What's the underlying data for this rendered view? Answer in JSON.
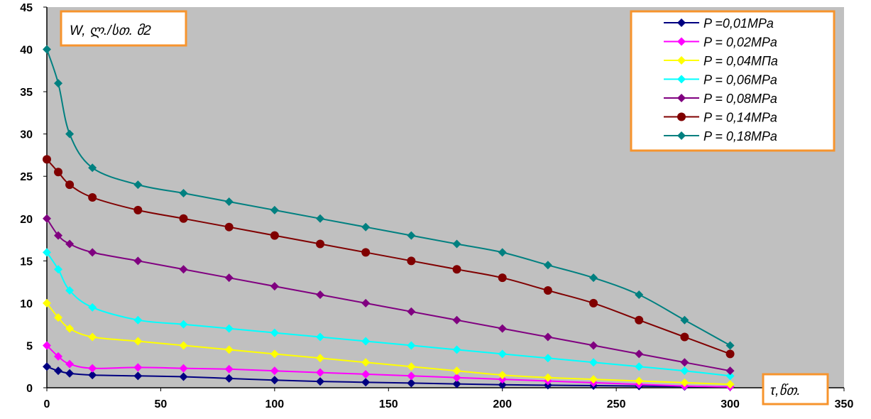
{
  "chart_data": {
    "type": "line",
    "title": "",
    "ylabel": "W, ლ./სთ. მ2",
    "xlabel": "τ,წთ.",
    "xlim": [
      0,
      350
    ],
    "ylim": [
      0,
      45
    ],
    "xticks": [
      0,
      50,
      100,
      150,
      200,
      250,
      300,
      350
    ],
    "yticks": [
      0,
      5,
      10,
      15,
      20,
      25,
      30,
      35,
      40,
      45
    ],
    "grid": false,
    "legend_position": "top-right",
    "plot_background": "#C0C0C0",
    "frame_color": "#F7942D",
    "x": [
      0,
      5,
      10,
      20,
      40,
      60,
      80,
      100,
      120,
      140,
      160,
      180,
      200,
      220,
      240,
      260,
      280,
      300
    ],
    "series": [
      {
        "name": "P =0,01MPa",
        "color": "#000080",
        "marker": "diamond",
        "values": [
          2.5,
          2.0,
          1.7,
          1.5,
          1.4,
          1.3,
          1.1,
          0.9,
          0.75,
          0.65,
          0.55,
          0.45,
          0.35,
          0.3,
          0.25,
          0.2,
          0.15,
          0.1
        ]
      },
      {
        "name": "P = 0,02MPa",
        "color": "#FF00FF",
        "marker": "diamond",
        "values": [
          5.0,
          3.7,
          2.8,
          2.3,
          2.4,
          2.3,
          2.2,
          2.0,
          1.8,
          1.6,
          1.4,
          1.2,
          1.0,
          0.8,
          0.6,
          0.4,
          0.2,
          0.1
        ]
      },
      {
        "name": "P = 0,04MПa",
        "color": "#FFFF00",
        "marker": "diamond",
        "values": [
          10.0,
          8.3,
          7.0,
          6.0,
          5.5,
          5.0,
          4.5,
          4.0,
          3.5,
          3.0,
          2.5,
          2.0,
          1.5,
          1.2,
          1.0,
          0.8,
          0.6,
          0.4
        ]
      },
      {
        "name": "P = 0,06MPa",
        "color": "#00FFFF",
        "marker": "diamond",
        "values": [
          16.0,
          14.0,
          11.5,
          9.5,
          8.0,
          7.5,
          7.0,
          6.5,
          6.0,
          5.5,
          5.0,
          4.5,
          4.0,
          3.5,
          3.0,
          2.5,
          2.0,
          1.4
        ]
      },
      {
        "name": "P = 0,08MPa",
        "color": "#800080",
        "marker": "diamond",
        "values": [
          20.0,
          18.0,
          17.0,
          16.0,
          15.0,
          14.0,
          13.0,
          12.0,
          11.0,
          10.0,
          9.0,
          8.0,
          7.0,
          6.0,
          5.0,
          4.0,
          3.0,
          2.0
        ]
      },
      {
        "name": "P = 0,14MPa",
        "color": "#800000",
        "marker": "circle",
        "values": [
          27.0,
          25.5,
          24.0,
          22.5,
          21.0,
          20.0,
          19.0,
          18.0,
          17.0,
          16.0,
          15.0,
          14.0,
          13.0,
          11.5,
          10.0,
          8.0,
          6.0,
          4.0
        ]
      },
      {
        "name": "P = 0,18MPa",
        "color": "#008080",
        "marker": "diamond",
        "values": [
          40.0,
          36.0,
          30.0,
          26.0,
          24.0,
          23.0,
          22.0,
          21.0,
          20.0,
          19.0,
          18.0,
          17.0,
          16.0,
          14.5,
          13.0,
          11.0,
          8.0,
          5.0
        ]
      }
    ]
  }
}
